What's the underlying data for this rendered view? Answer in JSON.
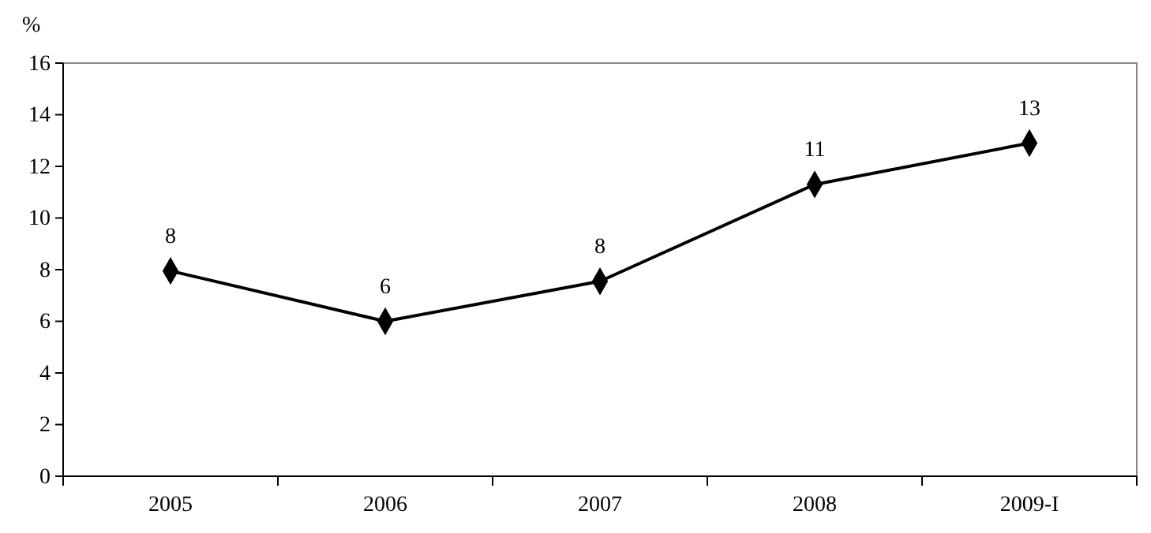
{
  "chart_data": {
    "type": "line",
    "ylabel": "%",
    "categories": [
      "2005",
      "2006",
      "2007",
      "2008",
      "2009-I"
    ],
    "series": [
      {
        "color": "#000000",
        "values": [
          7.95,
          6.0,
          7.55,
          11.3,
          12.9
        ],
        "value_labels": [
          "8",
          "6",
          "8",
          "11",
          "13"
        ]
      }
    ],
    "ylim": [
      0,
      16
    ],
    "yticks": [
      0,
      2,
      4,
      6,
      8,
      10,
      12,
      14,
      16
    ],
    "marker": "diamond",
    "line_style": "solid",
    "grid": false
  }
}
